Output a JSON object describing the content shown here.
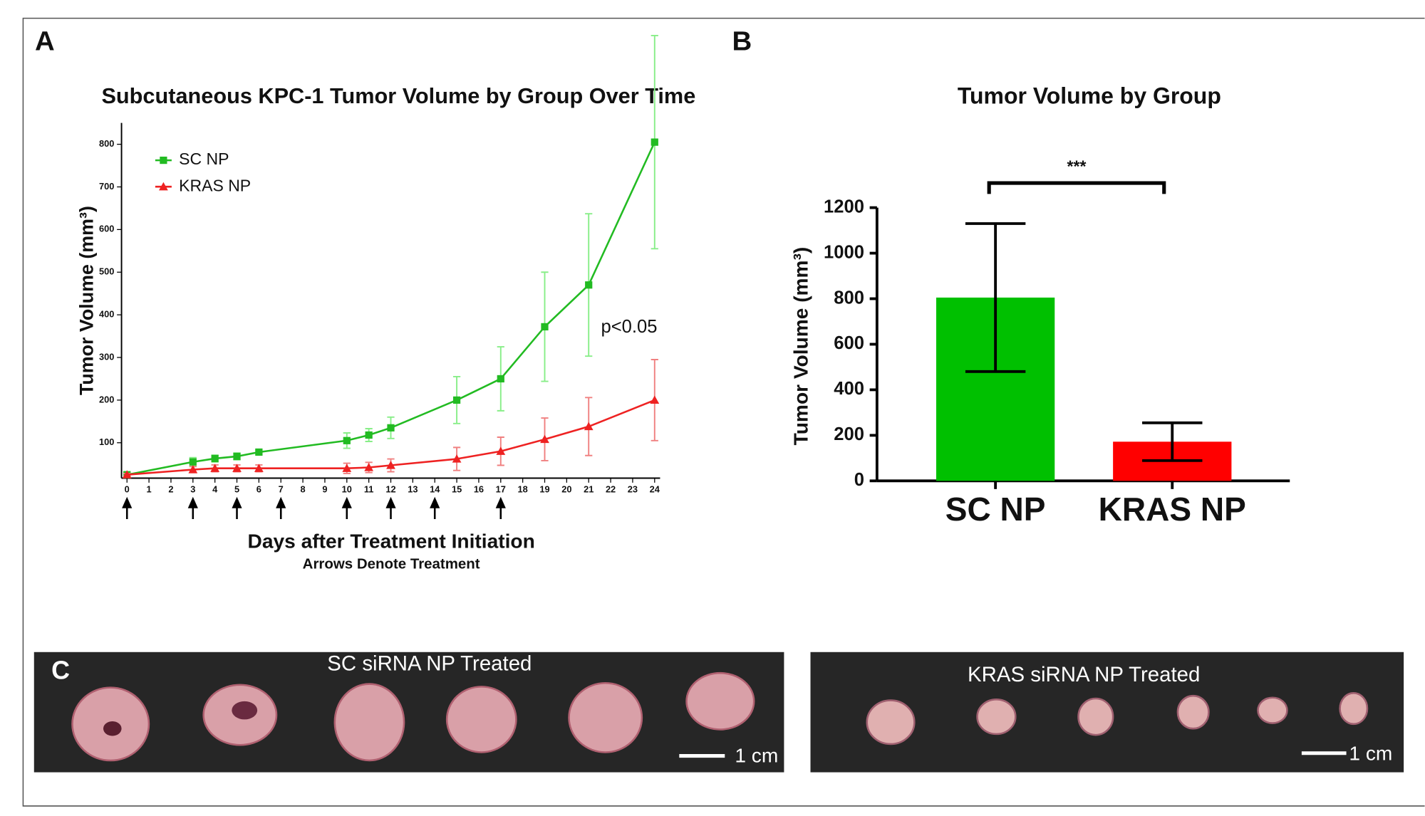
{
  "panel_labels": [
    "A",
    "B",
    "C"
  ],
  "chart_data": [
    {
      "type": "line",
      "title": "Subcutaneous KPC-1 Tumor Volume by Group Over Time",
      "x_label": "Days after Treatment Initiation",
      "note": "Arrows Denote Treatment",
      "y_label": "Tumor Volume (mm³)",
      "annotation": "p<0.05",
      "x": [
        0,
        3,
        4,
        5,
        6,
        10,
        11,
        12,
        15,
        17,
        19,
        21,
        24
      ],
      "series": [
        {
          "name": "SC NP",
          "color": "#22bb22",
          "error_color": "#88ee88",
          "marker": "square",
          "values": [
            25,
            55,
            63,
            68,
            78,
            105,
            118,
            135,
            200,
            250,
            372,
            470,
            805
          ],
          "errors": [
            5,
            10,
            8,
            8,
            5,
            18,
            15,
            25,
            55,
            75,
            128,
            167,
            250
          ]
        },
        {
          "name": "KRAS NP",
          "color": "#ee2222",
          "error_color": "#f08080",
          "marker": "triangle",
          "values": [
            25,
            37,
            40,
            40,
            40,
            40,
            42,
            47,
            62,
            80,
            108,
            138,
            200
          ],
          "errors": [
            3,
            7,
            8,
            8,
            8,
            12,
            12,
            15,
            27,
            33,
            50,
            68,
            95
          ]
        }
      ],
      "treatment_days": [
        0,
        3,
        5,
        7,
        10,
        12,
        14,
        17
      ],
      "xlim": [
        0,
        24
      ],
      "xticks": [
        0,
        1,
        2,
        3,
        4,
        5,
        6,
        7,
        8,
        9,
        10,
        11,
        12,
        13,
        14,
        15,
        16,
        17,
        18,
        19,
        20,
        21,
        22,
        23,
        24
      ],
      "ylim": [
        17,
        850
      ],
      "yticks": [
        100,
        200,
        300,
        400,
        500,
        600,
        700,
        800
      ],
      "legend": "top-left"
    },
    {
      "type": "bar",
      "title": "Tumor Volume by Group",
      "y_label": "Tumor Volume (mm³)",
      "annotation": "***",
      "categories": [
        "SC NP",
        "KRAS NP"
      ],
      "values": [
        805,
        172
      ],
      "errors": [
        325,
        83
      ],
      "colors": [
        "#00c000",
        "#ff0000"
      ],
      "ylim": [
        0,
        1200
      ],
      "yticks": [
        0,
        200,
        400,
        600,
        800,
        1000,
        1200
      ]
    }
  ],
  "photos": [
    {
      "caption": "SC siRNA NP Treated",
      "scale_label": "1 cm"
    },
    {
      "caption": "KRAS siRNA NP Treated",
      "scale_label": "1 cm"
    }
  ]
}
